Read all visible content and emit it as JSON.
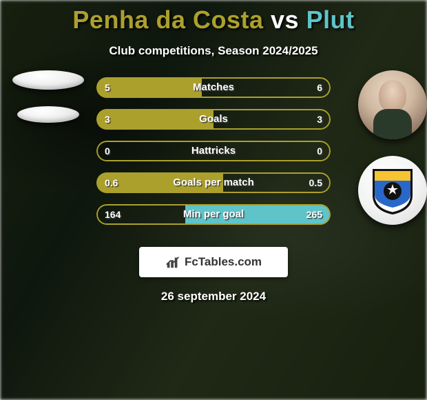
{
  "title": {
    "left_name": "Penha da Costa",
    "vs": "vs",
    "right_name": "Plut",
    "left_color": "#aca02d",
    "vs_color": "#ffffff",
    "right_color": "#5ec4c9",
    "fontsize": 36
  },
  "subtitle": "Club competitions, Season 2024/2025",
  "bars": {
    "left_color": "#aca02d",
    "right_color": "#5ec4c9",
    "outline_left": "#aca02d",
    "outline_right": "#5ec4c9",
    "rows": [
      {
        "label": "Matches",
        "left": "5",
        "right": "6",
        "left_pct": 45,
        "right_pct": 0
      },
      {
        "label": "Goals",
        "left": "3",
        "right": "3",
        "left_pct": 50,
        "right_pct": 0
      },
      {
        "label": "Hattricks",
        "left": "0",
        "right": "0",
        "left_pct": 0,
        "right_pct": 0
      },
      {
        "label": "Goals per match",
        "left": "0.6",
        "right": "0.5",
        "left_pct": 54,
        "right_pct": 0
      },
      {
        "label": "Min per goal",
        "left": "164",
        "right": "265",
        "left_pct": 0,
        "right_pct": 62
      }
    ]
  },
  "watermark": {
    "text": "FcTables.com"
  },
  "date": "26 september 2024",
  "badge_colors": {
    "top": "#f5c430",
    "mid": "#2968c8",
    "ball": "#111111",
    "stripe": "#ffffff"
  }
}
